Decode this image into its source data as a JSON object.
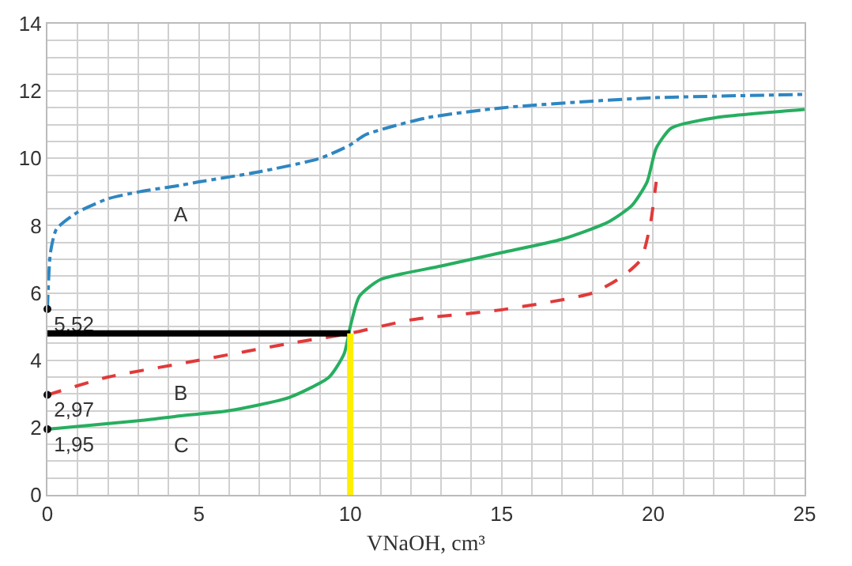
{
  "chart_data": {
    "type": "line",
    "xlabel": "VNaOH, cm³",
    "xlim": [
      0,
      25
    ],
    "ylim": [
      0,
      14
    ],
    "xticks": [
      0,
      {
        "value": 1,
        "label": null
      },
      {
        "value": 2,
        "label": null
      },
      {
        "value": 3,
        "label": null
      },
      {
        "value": 4,
        "label": null
      },
      5,
      {
        "value": 6,
        "label": null
      },
      {
        "value": 7,
        "label": null
      },
      {
        "value": 8,
        "label": null
      },
      {
        "value": 9,
        "label": null
      },
      10,
      {
        "value": 11,
        "label": null
      },
      {
        "value": 12,
        "label": null
      },
      {
        "value": 13,
        "label": null
      },
      {
        "value": 14,
        "label": null
      },
      15,
      {
        "value": 16,
        "label": null
      },
      {
        "value": 17,
        "label": null
      },
      {
        "value": 18,
        "label": null
      },
      {
        "value": 19,
        "label": null
      },
      20,
      {
        "value": 21,
        "label": null
      },
      {
        "value": 22,
        "label": null
      },
      {
        "value": 23,
        "label": null
      },
      {
        "value": 24,
        "label": null
      },
      25
    ],
    "yticks": [
      0,
      {
        "value": 0.5,
        "label": null
      },
      {
        "value": 1,
        "label": null
      },
      {
        "value": 1.5,
        "label": null
      },
      2,
      {
        "value": 2.5,
        "label": null
      },
      {
        "value": 3,
        "label": null
      },
      {
        "value": 3.5,
        "label": null
      },
      4,
      {
        "value": 4.5,
        "label": null
      },
      {
        "value": 5,
        "label": null
      },
      {
        "value": 5.5,
        "label": null
      },
      6,
      {
        "value": 6.5,
        "label": null
      },
      {
        "value": 7,
        "label": null
      },
      {
        "value": 7.5,
        "label": null
      },
      8,
      {
        "value": 8.5,
        "label": null
      },
      {
        "value": 9,
        "label": null
      },
      {
        "value": 9.5,
        "label": null
      },
      10,
      {
        "value": 10.5,
        "label": null
      },
      {
        "value": 11,
        "label": null
      },
      {
        "value": 11.5,
        "label": null
      },
      12,
      {
        "value": 12.5,
        "label": null
      },
      {
        "value": 13,
        "label": null
      },
      {
        "value": 13.5,
        "label": null
      },
      14
    ],
    "grid": true,
    "legend": false,
    "series": [
      {
        "name": "A",
        "color": "#2e86c1",
        "line_style": "dashdot",
        "x": [
          0,
          0.1,
          0.3,
          1,
          2,
          3,
          4.4,
          5,
          7,
          9,
          10,
          10.5,
          12.5,
          15,
          18,
          20,
          25
        ],
        "values": [
          5.52,
          7.2,
          7.9,
          8.4,
          8.8,
          9.0,
          9.2,
          9.3,
          9.6,
          10.0,
          10.4,
          10.7,
          11.2,
          11.5,
          11.7,
          11.8,
          11.9
        ]
      },
      {
        "name": "B",
        "color": "#e03a3a",
        "line_style": "dashed",
        "x": [
          0,
          2,
          4.4,
          5,
          8,
          10,
          12,
          15,
          18,
          19,
          19.6,
          19.9,
          20.1
        ],
        "values": [
          2.97,
          3.5,
          3.9,
          4.0,
          4.5,
          4.8,
          5.2,
          5.5,
          6.0,
          6.5,
          7.0,
          8.0,
          9.3
        ]
      },
      {
        "name": "C",
        "color": "#27ae60",
        "line_style": "solid",
        "x": [
          0,
          3,
          4.4,
          6,
          8,
          9.3,
          9.8,
          10,
          10.3,
          11,
          13,
          15,
          17,
          18.5,
          19.3,
          19.8,
          20.1,
          20.6,
          22,
          25
        ],
        "values": [
          1.95,
          2.2,
          2.35,
          2.5,
          2.9,
          3.5,
          4.2,
          5.0,
          5.9,
          6.4,
          6.8,
          7.2,
          7.6,
          8.1,
          8.6,
          9.3,
          10.3,
          10.9,
          11.2,
          11.45
        ]
      },
      {
        "type": "scatter",
        "marker": "circle",
        "color": "#111111",
        "x": [
          0,
          0,
          0
        ],
        "values": [
          5.52,
          2.97,
          1.95
        ],
        "value_labels": [
          "5,52",
          "2,97",
          "1,95"
        ]
      },
      {
        "color": "#000000",
        "line_style": "solid",
        "x": [
          0,
          10
        ],
        "values": [
          4.8,
          4.8
        ]
      },
      {
        "color": "#ffee00",
        "line_style": "solid",
        "x": [
          10,
          10
        ],
        "values": [
          0,
          4.8
        ]
      }
    ]
  }
}
